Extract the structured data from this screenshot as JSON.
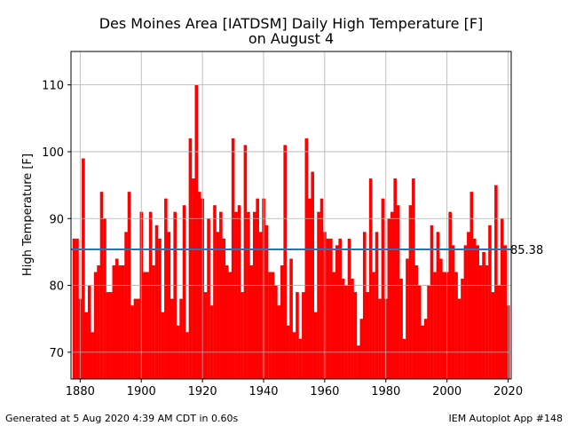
{
  "chart_data": {
    "type": "bar",
    "title_line1": "Des Moines Area [IATDSM] Daily High Temperature [F]",
    "title_line2": "on August 4",
    "ylabel": "High Temperature [F]",
    "xlim": [
      1877,
      2021
    ],
    "ylim": [
      66,
      115
    ],
    "xticks": [
      1880,
      1900,
      1920,
      1940,
      1960,
      1980,
      2000,
      2020
    ],
    "yticks": [
      70,
      80,
      90,
      100,
      110
    ],
    "grid": true,
    "bar_color": "#ff0000",
    "avg_line_color": "#1f77b4",
    "average": 85.38,
    "average_label": "85.38",
    "x": [
      1878,
      1879,
      1880,
      1881,
      1882,
      1883,
      1884,
      1885,
      1886,
      1887,
      1888,
      1889,
      1890,
      1891,
      1892,
      1893,
      1894,
      1895,
      1896,
      1897,
      1898,
      1899,
      1900,
      1901,
      1902,
      1903,
      1904,
      1905,
      1906,
      1907,
      1908,
      1909,
      1910,
      1911,
      1912,
      1913,
      1914,
      1915,
      1916,
      1917,
      1918,
      1919,
      1920,
      1921,
      1922,
      1923,
      1924,
      1925,
      1926,
      1927,
      1928,
      1929,
      1930,
      1931,
      1932,
      1933,
      1934,
      1935,
      1936,
      1937,
      1938,
      1939,
      1940,
      1941,
      1942,
      1943,
      1944,
      1945,
      1946,
      1947,
      1948,
      1949,
      1950,
      1951,
      1952,
      1953,
      1954,
      1955,
      1956,
      1957,
      1958,
      1959,
      1960,
      1961,
      1962,
      1963,
      1964,
      1965,
      1966,
      1967,
      1968,
      1969,
      1970,
      1971,
      1972,
      1973,
      1974,
      1975,
      1976,
      1977,
      1978,
      1979,
      1980,
      1981,
      1982,
      1983,
      1984,
      1985,
      1986,
      1987,
      1988,
      1989,
      1990,
      1991,
      1992,
      1993,
      1994,
      1995,
      1996,
      1997,
      1998,
      1999,
      2000,
      2001,
      2002,
      2003,
      2004,
      2005,
      2006,
      2007,
      2008,
      2009,
      2010,
      2011,
      2012,
      2013,
      2014,
      2015,
      2016,
      2017,
      2018,
      2019,
      2020
    ],
    "values": [
      87,
      87,
      78,
      99,
      76,
      80,
      73,
      82,
      83,
      94,
      90,
      79,
      79,
      83,
      84,
      83,
      83,
      88,
      94,
      77,
      78,
      78,
      91,
      82,
      82,
      91,
      83,
      89,
      87,
      76,
      93,
      88,
      78,
      91,
      74,
      78,
      92,
      73,
      102,
      96,
      110,
      94,
      93,
      79,
      90,
      77,
      92,
      88,
      91,
      87,
      83,
      82,
      102,
      91,
      92,
      79,
      101,
      91,
      83,
      91,
      93,
      88,
      93,
      89,
      82,
      82,
      80,
      77,
      83,
      101,
      74,
      84,
      73,
      79,
      72,
      79,
      102,
      93,
      97,
      76,
      91,
      93,
      88,
      87,
      87,
      82,
      86,
      87,
      81,
      80,
      87,
      81,
      79,
      71,
      75,
      88,
      79,
      96,
      82,
      88,
      78,
      93,
      78,
      90,
      91,
      96,
      92,
      81,
      72,
      84,
      92,
      96,
      83,
      80,
      74,
      75,
      80,
      89,
      82,
      88,
      84,
      82,
      82,
      91,
      86,
      82,
      78,
      81,
      86,
      88,
      94,
      87,
      86,
      83,
      85,
      83,
      89,
      79,
      95,
      80,
      90,
      86,
      77
    ]
  },
  "footer": {
    "left": "Generated at 5 Aug 2020 4:39 AM CDT in 0.60s",
    "right": "IEM Autoplot App #148"
  }
}
